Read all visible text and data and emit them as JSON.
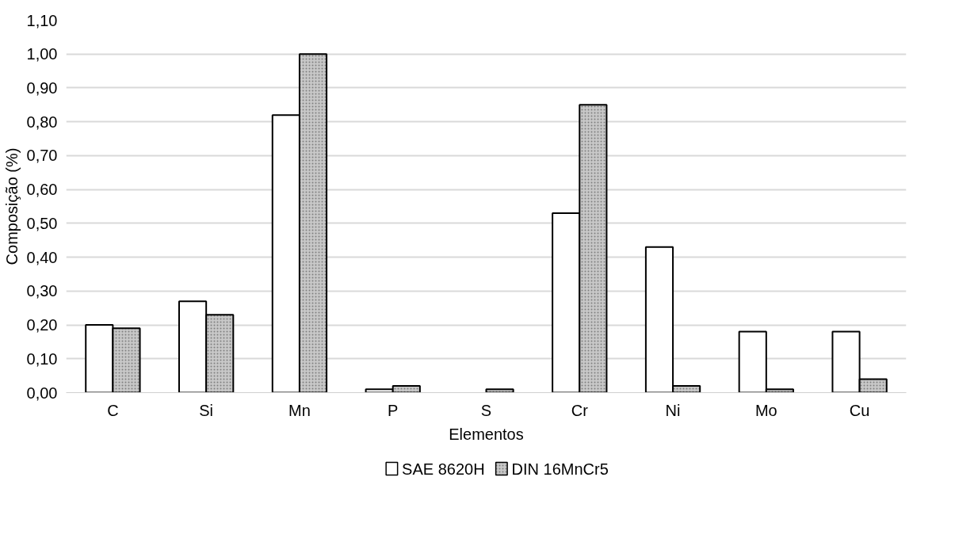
{
  "chart_data": {
    "type": "bar",
    "xlabel": "Elementos",
    "ylabel": "Composição (%)",
    "categories": [
      "C",
      "Si",
      "Mn",
      "P",
      "S",
      "Cr",
      "Ni",
      "Mo",
      "Cu"
    ],
    "series": [
      {
        "name": "SAE 8620H",
        "color": "#ffffff",
        "values": [
          0.2,
          0.27,
          0.82,
          0.01,
          null,
          0.53,
          0.43,
          0.18,
          0.18
        ]
      },
      {
        "name": "DIN 16MnCr5",
        "color": "#c8c8c8",
        "values": [
          0.19,
          0.23,
          1.0,
          0.02,
          0.01,
          0.85,
          0.02,
          0.01,
          0.04
        ]
      }
    ],
    "ylim": [
      0,
      1.1
    ],
    "yticks": [
      {
        "value": 0,
        "label": "0,00"
      },
      {
        "value": 0.1,
        "label": "0,10"
      },
      {
        "value": 0.2,
        "label": "0,20"
      },
      {
        "value": 0.3,
        "label": "0,30"
      },
      {
        "value": 0.4,
        "label": "0,40"
      },
      {
        "value": 0.5,
        "label": "0,50"
      },
      {
        "value": 0.6,
        "label": "0,60"
      },
      {
        "value": 0.7,
        "label": "0,70"
      },
      {
        "value": 0.8,
        "label": "0,80"
      },
      {
        "value": 0.9,
        "label": "0,90"
      },
      {
        "value": 1.0,
        "label": "1,00"
      },
      {
        "value": 1.1,
        "label": "1,10"
      }
    ],
    "grid": "y",
    "legend": "bottom"
  }
}
